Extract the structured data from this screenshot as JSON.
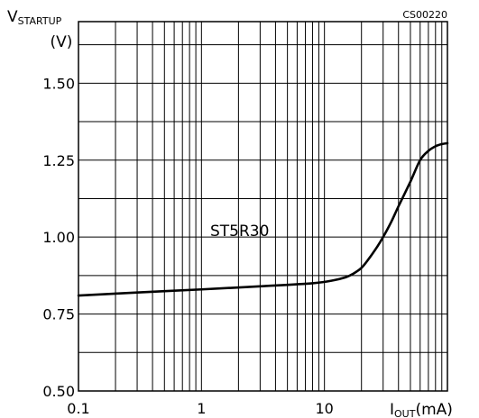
{
  "chart_data": {
    "type": "line",
    "figure_code": "CS00220",
    "y_title_main": "V",
    "y_title_sub": "STARTUP",
    "y_unit": "(V)",
    "x_title_main": "I",
    "x_title_sub": "OUT",
    "x_unit": "(mA)",
    "x_scale": "log",
    "xlim": [
      0.1,
      100
    ],
    "ylim": [
      0.5,
      1.7
    ],
    "x_tick_labels": [
      {
        "value": 0.1,
        "label": "0.1"
      },
      {
        "value": 1,
        "label": "1"
      },
      {
        "value": 10,
        "label": "10"
      }
    ],
    "y_tick_labels": [
      {
        "value": 0.5,
        "label": "0.50"
      },
      {
        "value": 0.75,
        "label": "0.75"
      },
      {
        "value": 1.0,
        "label": "1.00"
      },
      {
        "value": 1.25,
        "label": "1.25"
      },
      {
        "value": 1.5,
        "label": "1.50"
      }
    ],
    "y_gridlines": [
      0.5,
      0.625,
      0.75,
      0.875,
      1.0,
      1.125,
      1.25,
      1.375,
      1.5,
      1.625,
      1.7
    ],
    "x_gridlines": [
      0.1,
      0.2,
      0.3,
      0.4,
      0.5,
      0.6,
      0.7,
      0.8,
      0.9,
      1,
      2,
      3,
      4,
      5,
      6,
      7,
      8,
      9,
      10,
      20,
      30,
      40,
      50,
      60,
      70,
      80,
      90,
      100
    ],
    "grid": true,
    "series": [
      {
        "name": "ST5R30",
        "x": [
          0.1,
          0.3,
          1,
          3,
          8,
          12,
          15,
          17,
          20,
          23,
          27,
          30,
          35,
          40,
          50,
          60,
          70,
          80,
          90,
          100
        ],
        "y": [
          0.81,
          0.82,
          0.83,
          0.84,
          0.85,
          0.86,
          0.87,
          0.88,
          0.9,
          0.93,
          0.97,
          1.0,
          1.05,
          1.1,
          1.18,
          1.25,
          1.28,
          1.295,
          1.302,
          1.305
        ]
      }
    ]
  }
}
